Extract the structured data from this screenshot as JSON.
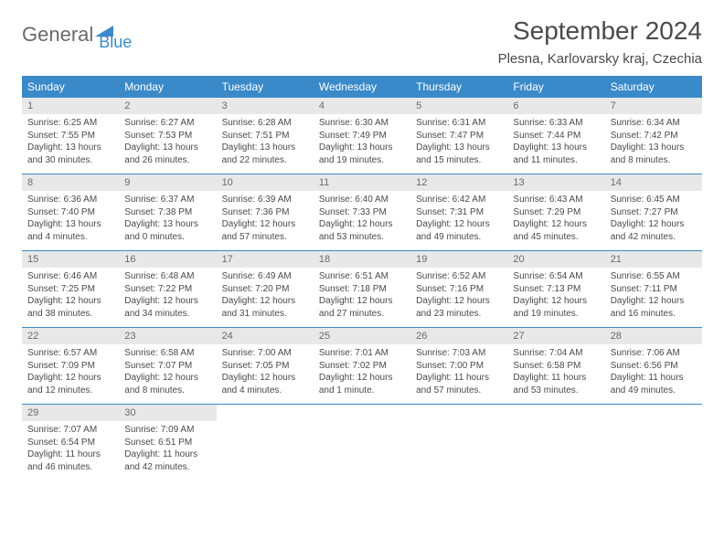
{
  "brand": {
    "part1": "General",
    "part2": "Blue"
  },
  "title": "September 2024",
  "location": "Plesna, Karlovarsky kraj, Czechia",
  "colors": {
    "accent": "#3a8ac9",
    "daynum_bg": "#e8e8e8",
    "text": "#4a4a4a"
  },
  "dow": [
    "Sunday",
    "Monday",
    "Tuesday",
    "Wednesday",
    "Thursday",
    "Friday",
    "Saturday"
  ],
  "weeks": [
    [
      {
        "n": "1",
        "sr": "Sunrise: 6:25 AM",
        "ss": "Sunset: 7:55 PM",
        "d1": "Daylight: 13 hours",
        "d2": "and 30 minutes."
      },
      {
        "n": "2",
        "sr": "Sunrise: 6:27 AM",
        "ss": "Sunset: 7:53 PM",
        "d1": "Daylight: 13 hours",
        "d2": "and 26 minutes."
      },
      {
        "n": "3",
        "sr": "Sunrise: 6:28 AM",
        "ss": "Sunset: 7:51 PM",
        "d1": "Daylight: 13 hours",
        "d2": "and 22 minutes."
      },
      {
        "n": "4",
        "sr": "Sunrise: 6:30 AM",
        "ss": "Sunset: 7:49 PM",
        "d1": "Daylight: 13 hours",
        "d2": "and 19 minutes."
      },
      {
        "n": "5",
        "sr": "Sunrise: 6:31 AM",
        "ss": "Sunset: 7:47 PM",
        "d1": "Daylight: 13 hours",
        "d2": "and 15 minutes."
      },
      {
        "n": "6",
        "sr": "Sunrise: 6:33 AM",
        "ss": "Sunset: 7:44 PM",
        "d1": "Daylight: 13 hours",
        "d2": "and 11 minutes."
      },
      {
        "n": "7",
        "sr": "Sunrise: 6:34 AM",
        "ss": "Sunset: 7:42 PM",
        "d1": "Daylight: 13 hours",
        "d2": "and 8 minutes."
      }
    ],
    [
      {
        "n": "8",
        "sr": "Sunrise: 6:36 AM",
        "ss": "Sunset: 7:40 PM",
        "d1": "Daylight: 13 hours",
        "d2": "and 4 minutes."
      },
      {
        "n": "9",
        "sr": "Sunrise: 6:37 AM",
        "ss": "Sunset: 7:38 PM",
        "d1": "Daylight: 13 hours",
        "d2": "and 0 minutes."
      },
      {
        "n": "10",
        "sr": "Sunrise: 6:39 AM",
        "ss": "Sunset: 7:36 PM",
        "d1": "Daylight: 12 hours",
        "d2": "and 57 minutes."
      },
      {
        "n": "11",
        "sr": "Sunrise: 6:40 AM",
        "ss": "Sunset: 7:33 PM",
        "d1": "Daylight: 12 hours",
        "d2": "and 53 minutes."
      },
      {
        "n": "12",
        "sr": "Sunrise: 6:42 AM",
        "ss": "Sunset: 7:31 PM",
        "d1": "Daylight: 12 hours",
        "d2": "and 49 minutes."
      },
      {
        "n": "13",
        "sr": "Sunrise: 6:43 AM",
        "ss": "Sunset: 7:29 PM",
        "d1": "Daylight: 12 hours",
        "d2": "and 45 minutes."
      },
      {
        "n": "14",
        "sr": "Sunrise: 6:45 AM",
        "ss": "Sunset: 7:27 PM",
        "d1": "Daylight: 12 hours",
        "d2": "and 42 minutes."
      }
    ],
    [
      {
        "n": "15",
        "sr": "Sunrise: 6:46 AM",
        "ss": "Sunset: 7:25 PM",
        "d1": "Daylight: 12 hours",
        "d2": "and 38 minutes."
      },
      {
        "n": "16",
        "sr": "Sunrise: 6:48 AM",
        "ss": "Sunset: 7:22 PM",
        "d1": "Daylight: 12 hours",
        "d2": "and 34 minutes."
      },
      {
        "n": "17",
        "sr": "Sunrise: 6:49 AM",
        "ss": "Sunset: 7:20 PM",
        "d1": "Daylight: 12 hours",
        "d2": "and 31 minutes."
      },
      {
        "n": "18",
        "sr": "Sunrise: 6:51 AM",
        "ss": "Sunset: 7:18 PM",
        "d1": "Daylight: 12 hours",
        "d2": "and 27 minutes."
      },
      {
        "n": "19",
        "sr": "Sunrise: 6:52 AM",
        "ss": "Sunset: 7:16 PM",
        "d1": "Daylight: 12 hours",
        "d2": "and 23 minutes."
      },
      {
        "n": "20",
        "sr": "Sunrise: 6:54 AM",
        "ss": "Sunset: 7:13 PM",
        "d1": "Daylight: 12 hours",
        "d2": "and 19 minutes."
      },
      {
        "n": "21",
        "sr": "Sunrise: 6:55 AM",
        "ss": "Sunset: 7:11 PM",
        "d1": "Daylight: 12 hours",
        "d2": "and 16 minutes."
      }
    ],
    [
      {
        "n": "22",
        "sr": "Sunrise: 6:57 AM",
        "ss": "Sunset: 7:09 PM",
        "d1": "Daylight: 12 hours",
        "d2": "and 12 minutes."
      },
      {
        "n": "23",
        "sr": "Sunrise: 6:58 AM",
        "ss": "Sunset: 7:07 PM",
        "d1": "Daylight: 12 hours",
        "d2": "and 8 minutes."
      },
      {
        "n": "24",
        "sr": "Sunrise: 7:00 AM",
        "ss": "Sunset: 7:05 PM",
        "d1": "Daylight: 12 hours",
        "d2": "and 4 minutes."
      },
      {
        "n": "25",
        "sr": "Sunrise: 7:01 AM",
        "ss": "Sunset: 7:02 PM",
        "d1": "Daylight: 12 hours",
        "d2": "and 1 minute."
      },
      {
        "n": "26",
        "sr": "Sunrise: 7:03 AM",
        "ss": "Sunset: 7:00 PM",
        "d1": "Daylight: 11 hours",
        "d2": "and 57 minutes."
      },
      {
        "n": "27",
        "sr": "Sunrise: 7:04 AM",
        "ss": "Sunset: 6:58 PM",
        "d1": "Daylight: 11 hours",
        "d2": "and 53 minutes."
      },
      {
        "n": "28",
        "sr": "Sunrise: 7:06 AM",
        "ss": "Sunset: 6:56 PM",
        "d1": "Daylight: 11 hours",
        "d2": "and 49 minutes."
      }
    ],
    [
      {
        "n": "29",
        "sr": "Sunrise: 7:07 AM",
        "ss": "Sunset: 6:54 PM",
        "d1": "Daylight: 11 hours",
        "d2": "and 46 minutes."
      },
      {
        "n": "30",
        "sr": "Sunrise: 7:09 AM",
        "ss": "Sunset: 6:51 PM",
        "d1": "Daylight: 11 hours",
        "d2": "and 42 minutes."
      },
      null,
      null,
      null,
      null,
      null
    ]
  ]
}
